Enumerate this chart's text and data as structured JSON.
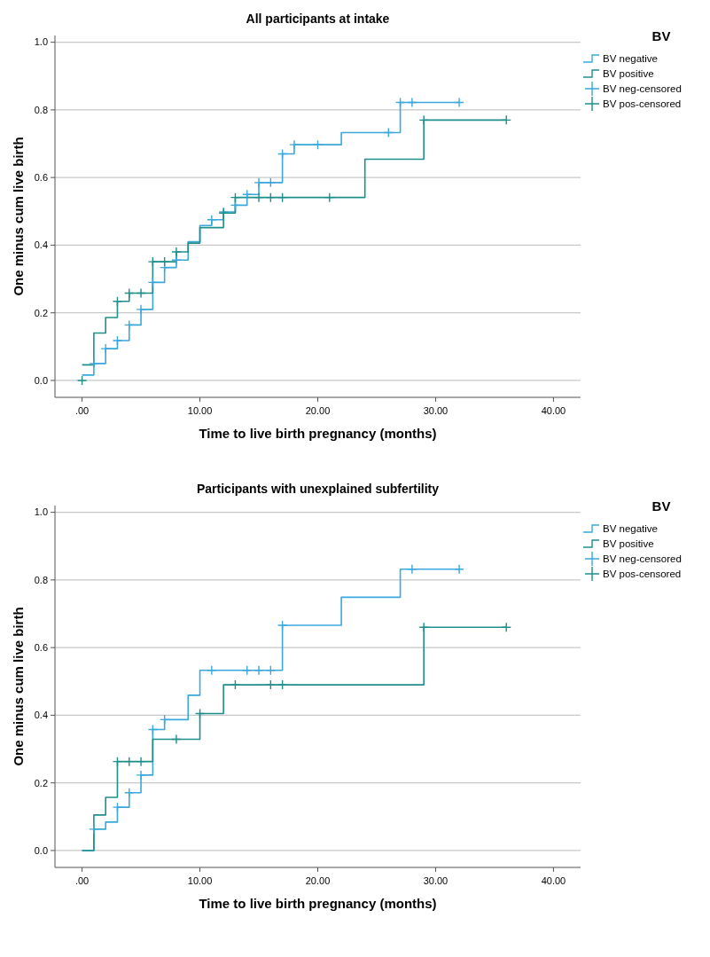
{
  "chart_data": [
    {
      "type": "step",
      "title": "All participants at intake",
      "xlabel": "Time to live birth pregnancy (months)",
      "ylabel": "One minus cum live birth",
      "legend_title": "BV",
      "legend": "right",
      "grid": "y",
      "xlim": [
        -2.3,
        42.3
      ],
      "xticks": [
        {
          "value": 0,
          "label": ".00"
        },
        {
          "value": 10,
          "label": "10.00"
        },
        {
          "value": 20,
          "label": "20.00"
        },
        {
          "value": 30,
          "label": "30.00"
        },
        {
          "value": 40,
          "label": "40.00"
        }
      ],
      "ylim": [
        -0.05,
        1.02
      ],
      "yticks": [
        {
          "value": 0,
          "label": "0.0"
        },
        {
          "value": 0.2,
          "label": "0.2"
        },
        {
          "value": 0.4,
          "label": "0.4"
        },
        {
          "value": 0.6,
          "label": "0.6"
        },
        {
          "value": 0.8,
          "label": "0.8"
        },
        {
          "value": 1,
          "label": "1.0"
        }
      ],
      "series": [
        {
          "name": "BV negative",
          "color": "#3aa8dc",
          "x": [
            0,
            1,
            2,
            3,
            4,
            5,
            6,
            7,
            8,
            9,
            10,
            11,
            12,
            13,
            14,
            15,
            17,
            18,
            22,
            27,
            32
          ],
          "values": [
            0.016,
            0.05,
            0.094,
            0.118,
            0.164,
            0.21,
            0.29,
            0.334,
            0.356,
            0.41,
            0.458,
            0.475,
            0.498,
            0.518,
            0.55,
            0.585,
            0.67,
            0.697,
            0.733,
            0.822,
            0.822
          ]
        },
        {
          "name": "BV positive",
          "color": "#1f8f8c",
          "x": [
            0,
            1,
            2,
            3,
            4,
            6,
            8,
            9,
            10,
            12,
            13,
            24,
            29,
            36
          ],
          "values": [
            0.046,
            0.14,
            0.186,
            0.234,
            0.258,
            0.351,
            0.38,
            0.406,
            0.452,
            0.495,
            0.541,
            0.654,
            0.77,
            0.77
          ]
        },
        {
          "name": "BV neg-censored",
          "type": "scatter",
          "marker": "cross",
          "color": "#3aa8dc",
          "x": [
            1,
            2,
            3,
            4,
            5,
            6,
            7,
            8,
            11,
            12,
            13,
            14,
            15,
            16,
            17,
            18,
            20,
            26,
            27,
            28,
            32
          ],
          "values": [
            0.05,
            0.094,
            0.118,
            0.164,
            0.21,
            0.29,
            0.334,
            0.356,
            0.475,
            0.498,
            0.518,
            0.55,
            0.585,
            0.585,
            0.67,
            0.697,
            0.697,
            0.733,
            0.822,
            0.822,
            0.822
          ]
        },
        {
          "name": "BV pos-censored",
          "type": "scatter",
          "marker": "cross",
          "color": "#1f8f8c",
          "x": [
            0,
            3,
            4,
            5,
            6,
            7,
            8,
            12,
            13,
            15,
            16,
            17,
            21,
            29,
            36
          ],
          "values": [
            0,
            0.234,
            0.258,
            0.258,
            0.351,
            0.351,
            0.38,
            0.495,
            0.541,
            0.541,
            0.541,
            0.541,
            0.541,
            0.77,
            0.77
          ]
        }
      ]
    },
    {
      "type": "step",
      "title": "Participants with unexplained subfertility",
      "xlabel": "Time to live birth pregnancy (months)",
      "ylabel": "One minus cum live birth",
      "legend_title": "BV",
      "legend": "right",
      "grid": "y",
      "xlim": [
        -2.3,
        42.3
      ],
      "xticks": [
        {
          "value": 0,
          "label": ".00"
        },
        {
          "value": 10,
          "label": "10.00"
        },
        {
          "value": 20,
          "label": "20.00"
        },
        {
          "value": 30,
          "label": "30.00"
        },
        {
          "value": 40,
          "label": "40.00"
        }
      ],
      "ylim": [
        -0.05,
        1.02
      ],
      "yticks": [
        {
          "value": 0,
          "label": "0.0"
        },
        {
          "value": 0.2,
          "label": "0.2"
        },
        {
          "value": 0.4,
          "label": "0.4"
        },
        {
          "value": 0.6,
          "label": "0.6"
        },
        {
          "value": 0.8,
          "label": "0.8"
        },
        {
          "value": 1,
          "label": "1.0"
        }
      ],
      "series": [
        {
          "name": "BV negative",
          "color": "#3aa8dc",
          "x": [
            0,
            1,
            2,
            3,
            4,
            5,
            6,
            7,
            9,
            10,
            17,
            22,
            27,
            32
          ],
          "values": [
            0,
            0.063,
            0.084,
            0.128,
            0.171,
            0.223,
            0.358,
            0.387,
            0.459,
            0.533,
            0.666,
            0.749,
            0.832,
            0.832
          ]
        },
        {
          "name": "BV positive",
          "color": "#1f8f8c",
          "x": [
            0,
            1,
            2,
            3,
            6,
            10,
            12,
            29,
            36
          ],
          "values": [
            0,
            0.105,
            0.157,
            0.263,
            0.329,
            0.405,
            0.49,
            0.66,
            0.66
          ]
        },
        {
          "name": "BV neg-censored",
          "type": "scatter",
          "marker": "cross",
          "color": "#3aa8dc",
          "x": [
            1,
            3,
            4,
            5,
            6,
            7,
            11,
            14,
            15,
            16,
            17,
            28,
            32
          ],
          "values": [
            0.063,
            0.128,
            0.171,
            0.223,
            0.358,
            0.387,
            0.533,
            0.533,
            0.533,
            0.533,
            0.666,
            0.832,
            0.832
          ]
        },
        {
          "name": "BV pos-censored",
          "type": "scatter",
          "marker": "cross",
          "color": "#1f8f8c",
          "x": [
            3,
            4,
            5,
            8,
            10,
            13,
            16,
            17,
            29,
            36
          ],
          "values": [
            0.263,
            0.263,
            0.263,
            0.329,
            0.405,
            0.49,
            0.49,
            0.49,
            0.66,
            0.66
          ]
        }
      ]
    }
  ]
}
